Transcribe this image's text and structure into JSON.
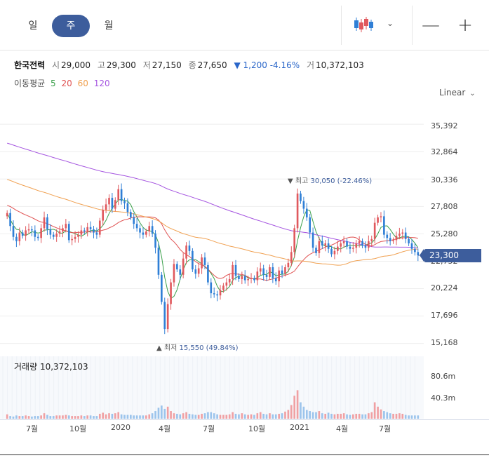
{
  "toolbar": {
    "tabs": [
      {
        "label": "일",
        "active": false
      },
      {
        "label": "주",
        "active": true
      },
      {
        "label": "월",
        "active": false
      }
    ],
    "chart_type_icon": "candlestick-icon",
    "zoom_out_label": "—",
    "zoom_in_label": "+"
  },
  "quote": {
    "name": "한국전력",
    "open_label": "시",
    "open": "29,000",
    "high_label": "고",
    "high": "29,300",
    "low_label": "저",
    "low": "27,150",
    "close_label": "종",
    "close": "27,650",
    "change": "▼ 1,200 -4.16%",
    "volume_label": "거",
    "volume": "10,372,103"
  },
  "ma_legend": {
    "label": "이동평균",
    "periods": [
      {
        "period": "5",
        "color": "#3aa04a"
      },
      {
        "period": "20",
        "color": "#e05252"
      },
      {
        "period": "60",
        "color": "#f0a050"
      },
      {
        "period": "120",
        "color": "#a555e0"
      }
    ]
  },
  "scale_mode": "Linear",
  "current_price_tag": "23,300",
  "volume_title": {
    "label": "거래량",
    "value": "10,372,103"
  },
  "colors": {
    "up": "#e0595e",
    "down": "#2f7fd6",
    "accent": "#3d5d9c",
    "vol_up": "#f0a0a3",
    "vol_down": "#9cc4ec"
  },
  "chart_data": {
    "type": "candlestick",
    "title": "",
    "ylim": [
      14500,
      36500
    ],
    "y_ticks": [
      "35,392",
      "32,864",
      "30,336",
      "27,808",
      "25,280",
      "22,752",
      "20,224",
      "17,696",
      "15,168"
    ],
    "x_ticks": [
      "7월",
      "10월",
      "2020",
      "4월",
      "7월",
      "10월",
      "2021",
      "4월",
      "7월"
    ],
    "volume_ticks": [
      "80.6m",
      "40.3m"
    ],
    "annotations": {
      "high": {
        "prefix": "▼ 최고",
        "text": "30,050 (-22.46%)"
      },
      "low": {
        "prefix": "▲ 최저",
        "text": "15,550 (49.84%)"
      }
    },
    "weekly_close": [
      27200,
      26000,
      25000,
      24600,
      25400,
      25100,
      25600,
      25700,
      25600,
      25000,
      24900,
      25800,
      26800,
      25700,
      25200,
      25000,
      25300,
      25500,
      25800,
      26200,
      24700,
      24800,
      25000,
      25200,
      25600,
      25500,
      25900,
      25700,
      25400,
      25200,
      26500,
      27500,
      28000,
      28600,
      27600,
      28400,
      29400,
      28300,
      28100,
      27300,
      26800,
      26200,
      25800,
      25400,
      25200,
      25500,
      26000,
      25300,
      24000,
      21500,
      19000,
      16500,
      18800,
      20800,
      22500,
      22000,
      21500,
      23000,
      24200,
      23700,
      22000,
      21600,
      22100,
      23100,
      22400,
      20800,
      19800,
      19700,
      19600,
      20100,
      20500,
      20800,
      21100,
      22400,
      21400,
      21100,
      21400,
      21000,
      21100,
      21200,
      21000,
      21800,
      22100,
      21500,
      21300,
      22200,
      21200,
      20900,
      21900,
      21600,
      22200,
      22600,
      23600,
      25800,
      29000,
      28300,
      27600,
      26800,
      25400,
      24000,
      23500,
      24600,
      24200,
      24400,
      23900,
      23400,
      23700,
      24100,
      24400,
      24600,
      24100,
      23900,
      24000,
      24400,
      24600,
      24200,
      24000,
      24600,
      24800,
      26300,
      26800,
      26900,
      25200,
      24900,
      24600,
      24700,
      25100,
      25300,
      25400,
      24800,
      24400,
      23900,
      23600,
      23300
    ],
    "weekly_volume": [
      8,
      5,
      4,
      6,
      5,
      5,
      6,
      5,
      4,
      5,
      5,
      6,
      10,
      7,
      5,
      5,
      6,
      6,
      6,
      7,
      6,
      5,
      5,
      5,
      6,
      5,
      6,
      6,
      5,
      5,
      9,
      11,
      8,
      10,
      9,
      10,
      12,
      8,
      7,
      7,
      7,
      6,
      6,
      6,
      6,
      6,
      8,
      10,
      14,
      20,
      24,
      18,
      22,
      14,
      10,
      9,
      8,
      10,
      12,
      9,
      8,
      7,
      7,
      9,
      10,
      12,
      12,
      10,
      8,
      7,
      7,
      7,
      8,
      12,
      9,
      8,
      10,
      8,
      7,
      8,
      7,
      10,
      12,
      9,
      8,
      10,
      8,
      8,
      9,
      10,
      13,
      16,
      25,
      42,
      52,
      30,
      22,
      16,
      14,
      12,
      12,
      14,
      10,
      9,
      11,
      9,
      8,
      9,
      9,
      10,
      8,
      7,
      8,
      9,
      9,
      8,
      8,
      10,
      12,
      30,
      22,
      17,
      14,
      12,
      10,
      9,
      9,
      10,
      9,
      7,
      6,
      6,
      6,
      6
    ]
  }
}
